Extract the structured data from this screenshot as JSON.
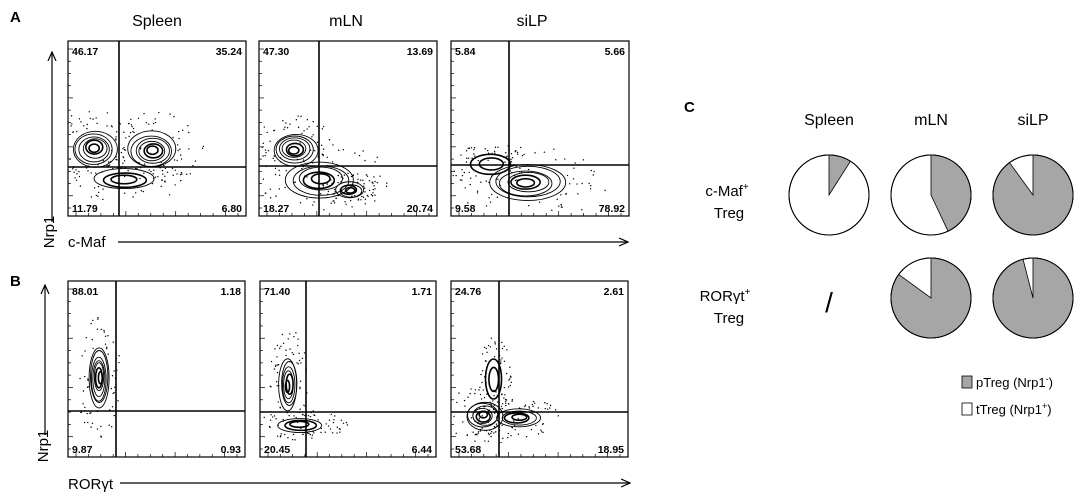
{
  "panels": {
    "A": {
      "letter": "A",
      "ylabel": "Nrp1",
      "xlabel": "c-Maf",
      "plots": [
        {
          "title": "Spleen",
          "q": {
            "ul": "46.17",
            "ur": "35.24",
            "ll": "11.79",
            "lr": "6.80"
          }
        },
        {
          "title": "mLN",
          "q": {
            "ul": "47.30",
            "ur": "13.69",
            "ll": "18.27",
            "lr": "20.74"
          }
        },
        {
          "title": "siLP",
          "q": {
            "ul": "5.84",
            "ur": "5.66",
            "ll": "9.58",
            "lr": "78.92"
          }
        }
      ]
    },
    "B": {
      "letter": "B",
      "ylabel": "Nrp1",
      "xlabel": "RORγt",
      "plots": [
        {
          "q": {
            "ul": "88.01",
            "ur": "1.18",
            "ll": "9.87",
            "lr": "0.93"
          }
        },
        {
          "q": {
            "ul": "71.40",
            "ur": "1.71",
            "ll": "20.45",
            "lr": "6.44"
          }
        },
        {
          "q": {
            "ul": "24.76",
            "ur": "2.61",
            "ll": "53.68",
            "lr": "18.95"
          }
        }
      ]
    },
    "C": {
      "letter": "C",
      "columns": [
        "Spleen",
        "mLN",
        "siLP"
      ],
      "rows": [
        {
          "line1": "c-Maf",
          "sup": "+",
          "line2": "Treg"
        },
        {
          "line1": "RORγt",
          "sup": "+",
          "line2": "Treg"
        }
      ],
      "empty_marker": "/"
    }
  },
  "chart_data": [
    {
      "type": "scatter",
      "panel": "A",
      "description_source": "flow cytometry contour plots; quadrant percentages",
      "xlabel": "c-Maf",
      "ylabel": "Nrp1",
      "series": [
        {
          "name": "Spleen",
          "quadrants": {
            "upper_left": 46.17,
            "upper_right": 35.24,
            "lower_left": 11.79,
            "lower_right": 6.8
          }
        },
        {
          "name": "mLN",
          "quadrants": {
            "upper_left": 47.3,
            "upper_right": 13.69,
            "lower_left": 18.27,
            "lower_right": 20.74
          }
        },
        {
          "name": "siLP",
          "quadrants": {
            "upper_left": 5.84,
            "upper_right": 5.66,
            "lower_left": 9.58,
            "lower_right": 78.92
          }
        }
      ]
    },
    {
      "type": "scatter",
      "panel": "B",
      "xlabel": "RORγt",
      "ylabel": "Nrp1",
      "series": [
        {
          "name": "Spleen",
          "quadrants": {
            "upper_left": 88.01,
            "upper_right": 1.18,
            "lower_left": 9.87,
            "lower_right": 0.93
          }
        },
        {
          "name": "mLN",
          "quadrants": {
            "upper_left": 71.4,
            "upper_right": 1.71,
            "lower_left": 20.45,
            "lower_right": 6.44
          }
        },
        {
          "name": "siLP",
          "quadrants": {
            "upper_left": 24.76,
            "upper_right": 2.61,
            "lower_left": 53.68,
            "lower_right": 18.95
          }
        }
      ]
    },
    {
      "type": "pie",
      "panel": "C",
      "categories": [
        "pTreg (Nrp1⁻)",
        "tTreg (Nrp1⁺)"
      ],
      "colors": {
        "pTreg": "#a6a6a6",
        "tTreg": "#ffffff"
      },
      "legend": [
        {
          "label": "pTreg (Nrp1",
          "sup": "-",
          "close": ")",
          "color": "#a6a6a6"
        },
        {
          "label": "tTreg (Nrp1",
          "sup": "+",
          "close": ")",
          "color": "#ffffff"
        }
      ],
      "pies": [
        {
          "row": "c-Maf+ Treg",
          "column": "Spleen",
          "pTreg": 0.09,
          "tTreg": 0.91
        },
        {
          "row": "c-Maf+ Treg",
          "column": "mLN",
          "pTreg": 0.43,
          "tTreg": 0.57
        },
        {
          "row": "c-Maf+ Treg",
          "column": "siLP",
          "pTreg": 0.9,
          "tTreg": 0.1
        },
        {
          "row": "RORγt+ Treg",
          "column": "mLN",
          "pTreg": 0.85,
          "tTreg": 0.15
        },
        {
          "row": "RORγt+ Treg",
          "column": "siLP",
          "pTreg": 0.96,
          "tTreg": 0.04
        }
      ]
    }
  ]
}
